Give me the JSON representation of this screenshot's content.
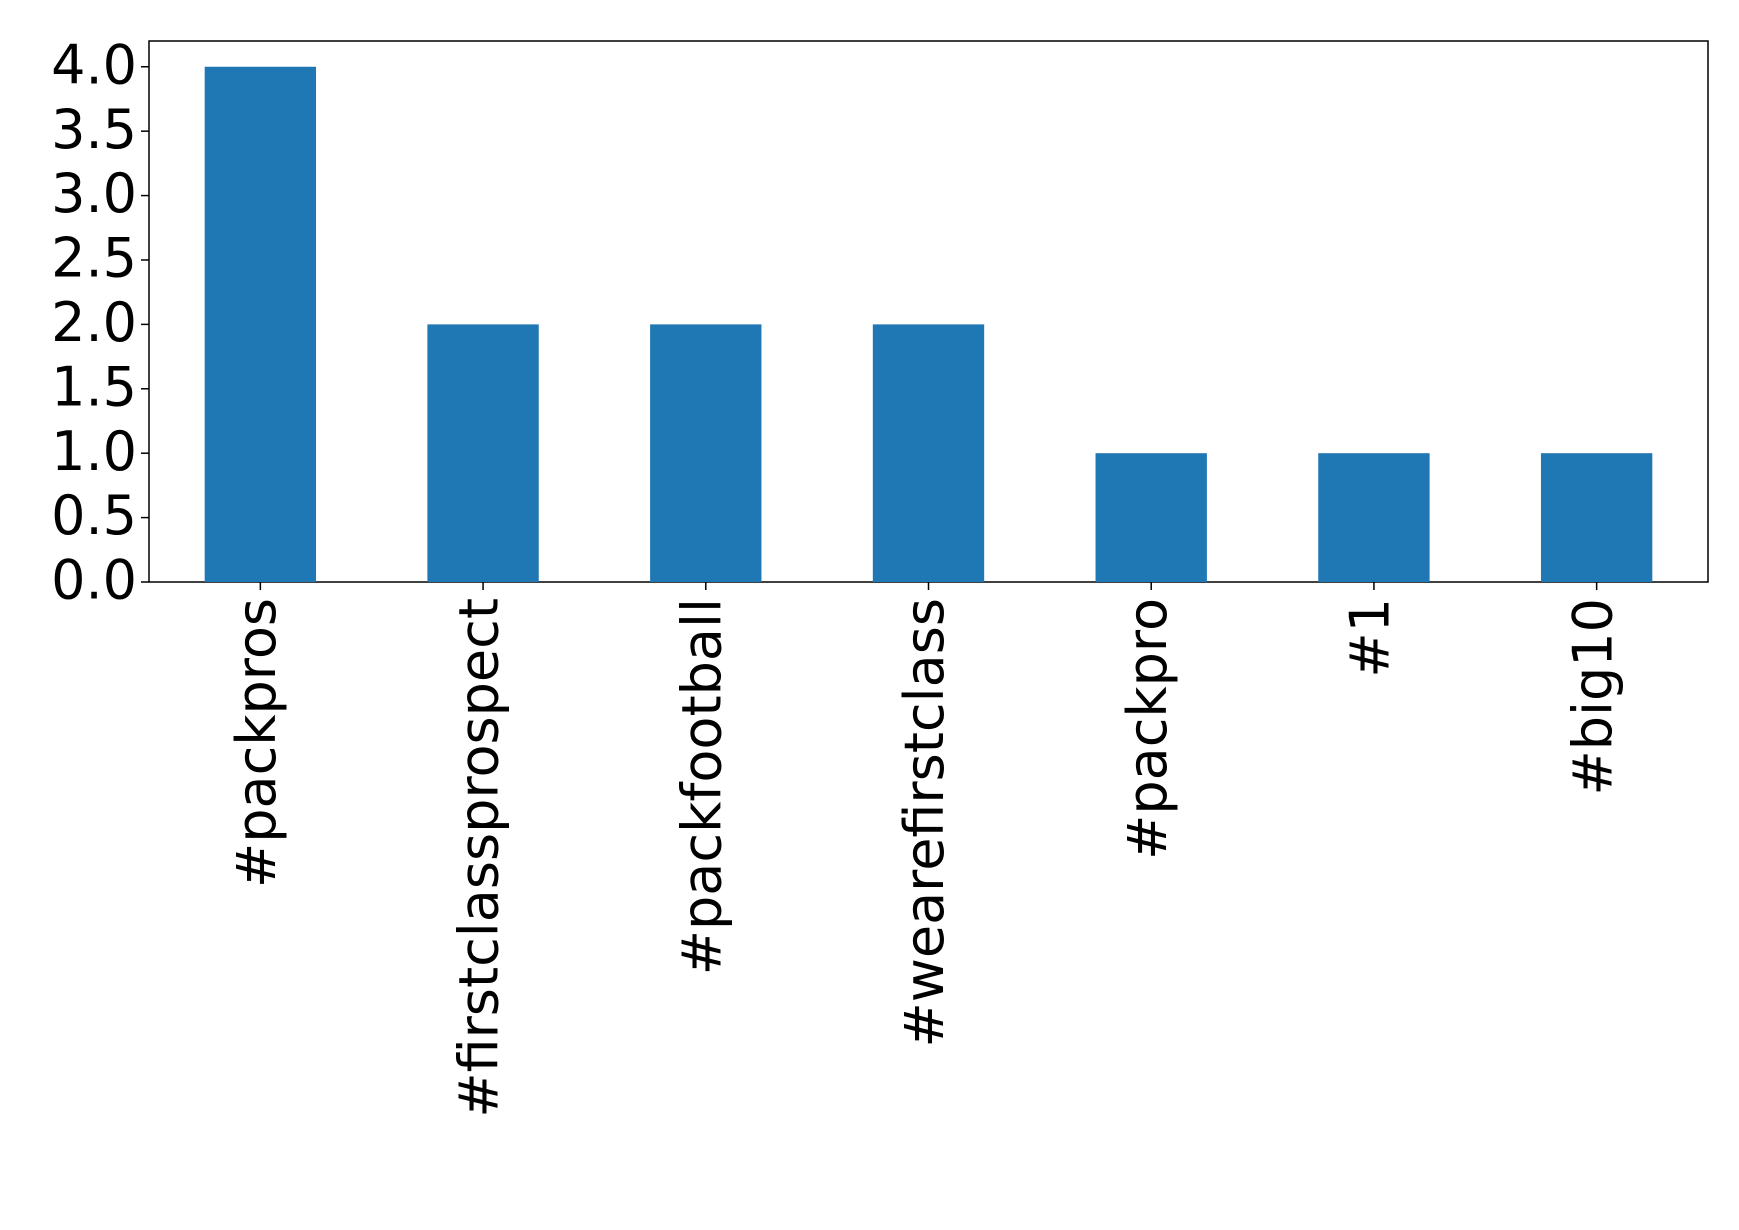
{
  "chart_data": {
    "type": "bar",
    "categories": [
      "#packpros",
      "#firstclassprospect",
      "#packfootball",
      "#wearefirstclass",
      "#packpro",
      "#1",
      "#big10"
    ],
    "values": [
      4,
      2,
      2,
      2,
      1,
      1,
      1
    ],
    "color": "#1f77b4",
    "ylim": [
      0,
      4.2
    ],
    "yticks": [
      {
        "value": 0,
        "label": "0.0"
      },
      {
        "value": 0.5,
        "label": "0.5"
      },
      {
        "value": 1,
        "label": "1.0"
      },
      {
        "value": 1.5,
        "label": "1.5"
      },
      {
        "value": 2,
        "label": "2.0"
      },
      {
        "value": 2.5,
        "label": "2.5"
      },
      {
        "value": 3,
        "label": "3.0"
      },
      {
        "value": 3.5,
        "label": "3.5"
      },
      {
        "value": 4,
        "label": "4.0"
      }
    ],
    "grid": false
  }
}
